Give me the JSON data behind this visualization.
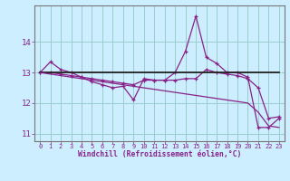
{
  "xlabel": "Windchill (Refroidissement éolien,°C)",
  "bg_color": "#cceeff",
  "line_color": "#882288",
  "flat_line_color": "#222222",
  "grid_color": "#99cccc",
  "hours": [
    0,
    1,
    2,
    3,
    4,
    5,
    6,
    7,
    8,
    9,
    10,
    11,
    12,
    13,
    14,
    15,
    16,
    17,
    18,
    19,
    20,
    21,
    22,
    23
  ],
  "curve_main": [
    13.0,
    13.35,
    13.1,
    13.0,
    12.85,
    12.7,
    12.6,
    12.5,
    12.55,
    12.1,
    12.8,
    12.75,
    12.75,
    13.0,
    13.7,
    14.85,
    13.5,
    13.3,
    13.0,
    13.0,
    12.85,
    11.2,
    11.2,
    11.5
  ],
  "curve_smooth": [
    13.0,
    13.0,
    12.95,
    12.9,
    12.85,
    12.8,
    12.75,
    12.7,
    12.65,
    12.6,
    12.75,
    12.75,
    12.75,
    12.75,
    12.8,
    12.8,
    13.1,
    13.0,
    12.95,
    12.9,
    12.8,
    12.5,
    11.5,
    11.55
  ],
  "curve_diag": [
    13.0,
    12.95,
    12.9,
    12.85,
    12.8,
    12.75,
    12.7,
    12.65,
    12.6,
    12.55,
    12.5,
    12.45,
    12.4,
    12.35,
    12.3,
    12.25,
    12.2,
    12.15,
    12.1,
    12.05,
    12.0,
    11.7,
    11.25,
    11.2
  ],
  "line_flat": [
    13.0,
    13.0,
    13.0,
    13.0,
    13.0,
    13.0,
    13.0,
    13.0,
    13.0,
    13.0,
    13.0,
    13.0,
    13.0,
    13.0,
    13.0,
    13.0,
    13.0,
    13.0,
    13.0,
    13.0,
    13.0,
    13.0,
    13.0,
    13.0
  ],
  "ylim": [
    10.75,
    15.2
  ],
  "yticks": [
    11,
    12,
    13,
    14
  ],
  "xticks": [
    0,
    1,
    2,
    3,
    4,
    5,
    6,
    7,
    8,
    9,
    10,
    11,
    12,
    13,
    14,
    15,
    16,
    17,
    18,
    19,
    20,
    21,
    22,
    23
  ]
}
